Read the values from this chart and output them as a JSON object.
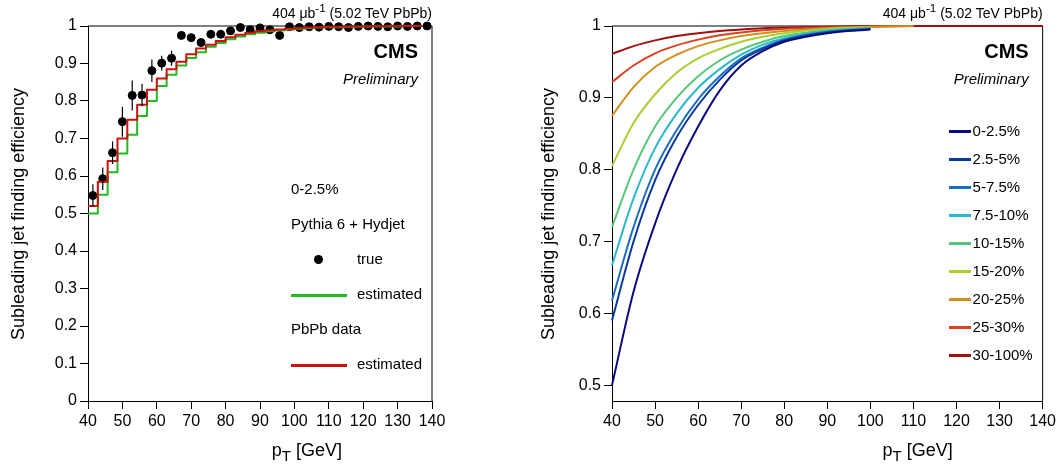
{
  "chart_data": [
    {
      "type": "scatter",
      "title": "404 μb$^{-1}$ (5.02 TeV PbPb)",
      "xlabel": "p$_{T}$ [GeV]",
      "ylabel": "Subleading jet finding efficiency",
      "annotations": [
        "CMS",
        "Preliminary",
        "0-2.5%",
        "Pythia 6 + Hydjet",
        "PbPb data"
      ],
      "xlim": [
        40,
        140
      ],
      "xticks": [
        40,
        50,
        60,
        70,
        80,
        90,
        100,
        110,
        120,
        130,
        140
      ],
      "ylim": [
        0,
        1
      ],
      "yticks": [
        0,
        0.1,
        0.2,
        0.3,
        0.4,
        0.5,
        0.6,
        0.7,
        0.8,
        0.9,
        1
      ],
      "legend": "right",
      "grid": false,
      "series": [
        {
          "name": "true",
          "marker": "circle",
          "color": "#000000",
          "x": [
            41.43,
            44.29,
            47.14,
            50,
            52.86,
            55.71,
            58.57,
            61.43,
            64.29,
            67.14,
            70,
            72.86,
            75.71,
            78.57,
            81.43,
            84.29,
            87.14,
            90,
            92.86,
            95.71,
            98.57,
            101.43,
            104.29,
            107.14,
            110,
            112.86,
            115.71,
            118.57,
            121.43,
            124.29,
            127.14,
            130,
            132.86,
            135.71,
            138.57
          ],
          "values": [
            0.548,
            0.593,
            0.662,
            0.745,
            0.815,
            0.816,
            0.881,
            0.901,
            0.914,
            0.975,
            0.969,
            0.956,
            0.978,
            0.978,
            0.987,
            0.996,
            0.99,
            0.995,
            0.99,
            0.975,
            0.998,
            0.996,
            0.998,
            0.997,
            0.999,
            0.998,
            0.996,
            0.999,
            1,
            0.999,
            0.998,
            1,
            0.999,
            1,
            1
          ],
          "errors": [
            0.03,
            0.03,
            0.03,
            0.04,
            0.04,
            0.03,
            0.03,
            0.02,
            0.02,
            0.01,
            0.01,
            0.01,
            0.01,
            0.01,
            null,
            null,
            null,
            null,
            null,
            null,
            null,
            null,
            null,
            null,
            null,
            null,
            null,
            null,
            null,
            null,
            null,
            null,
            null,
            null,
            null
          ]
        },
        {
          "name": "estimated",
          "type": "step",
          "color": "#22bb22",
          "x": [
            40,
            42.86,
            45.71,
            48.57,
            51.43,
            54.29,
            57.14,
            60,
            62.86,
            65.71,
            68.57,
            71.43,
            74.29,
            77.14,
            80,
            82.86,
            85.71,
            88.57,
            91.43,
            94.29,
            97.14,
            100,
            102.86,
            105.71,
            108.57,
            111.43,
            114.29,
            117.14,
            120,
            122.86,
            125.71,
            128.57,
            131.43,
            134.29,
            137.14
          ],
          "values": [
            0.5,
            0.55,
            0.61,
            0.66,
            0.71,
            0.76,
            0.8,
            0.84,
            0.87,
            0.895,
            0.915,
            0.93,
            0.945,
            0.955,
            0.965,
            0.972,
            0.978,
            0.982,
            0.986,
            0.989,
            0.991,
            0.993,
            0.995,
            0.996,
            0.997,
            0.997,
            0.998,
            0.998,
            0.999,
            0.999,
            0.999,
            0.999,
            1,
            1,
            1
          ]
        },
        {
          "name": "estimated",
          "type": "step",
          "color": "#cc1111",
          "x": [
            40,
            42.86,
            45.71,
            48.57,
            51.43,
            54.29,
            57.14,
            60,
            62.86,
            65.71,
            68.57,
            71.43,
            74.29,
            77.14,
            80,
            82.86,
            85.71,
            88.57,
            91.43,
            94.29,
            97.14,
            100,
            102.86,
            105.71,
            108.57,
            111.43,
            114.29,
            117.14,
            120,
            122.86,
            125.71,
            128.57,
            131.43,
            134.29,
            137.14
          ],
          "values": [
            0.52,
            0.585,
            0.64,
            0.7,
            0.75,
            0.79,
            0.83,
            0.86,
            0.885,
            0.905,
            0.925,
            0.94,
            0.95,
            0.96,
            0.97,
            0.977,
            0.982,
            0.986,
            0.989,
            0.991,
            0.993,
            0.995,
            0.996,
            0.997,
            0.998,
            0.998,
            0.999,
            0.999,
            0.999,
            1,
            1,
            1,
            1,
            1,
            1
          ]
        }
      ]
    },
    {
      "type": "line",
      "title": "404 μb$^{-1}$ (5.02 TeV PbPb)",
      "xlabel": "p$_{T}$ [GeV]",
      "ylabel": "Subleading jet finding efficiency",
      "annotations": [
        "CMS",
        "Preliminary"
      ],
      "xlim": [
        40,
        140
      ],
      "xticks": [
        40,
        50,
        60,
        70,
        80,
        90,
        100,
        110,
        120,
        130,
        140
      ],
      "ylim": [
        0.478,
        1
      ],
      "yticks": [
        0.5,
        0.6,
        0.7,
        0.8,
        0.9,
        1
      ],
      "legend": "right",
      "grid": false,
      "marker": "none",
      "x": [
        40,
        45,
        50,
        55,
        60,
        65,
        70,
        75,
        80,
        90,
        100,
        110,
        120,
        140
      ],
      "series": [
        {
          "name": "0-2.5%",
          "color": "#0b0b80",
          "values": [
            0.5,
            0.63,
            0.725,
            0.8,
            0.86,
            0.91,
            0.945,
            0.965,
            0.978,
            0.99,
            0.995,
            null,
            null,
            null
          ]
        },
        {
          "name": "2.5-5%",
          "color": "#0b3a9a",
          "values": [
            0.59,
            0.7,
            0.785,
            0.845,
            0.89,
            0.925,
            0.952,
            0.968,
            0.98,
            0.991,
            0.996,
            null,
            null,
            null
          ]
        },
        {
          "name": "5-7.5%",
          "color": "#1a6fc0",
          "values": [
            0.618,
            0.72,
            0.8,
            0.855,
            0.898,
            0.93,
            0.955,
            0.97,
            0.981,
            0.992,
            0.996,
            null,
            null,
            null
          ]
        },
        {
          "name": "7.5-10%",
          "color": "#2ab8d0",
          "values": [
            0.667,
            0.76,
            0.83,
            0.878,
            0.914,
            0.94,
            0.96,
            0.974,
            0.983,
            0.993,
            0.997,
            null,
            null,
            null
          ]
        },
        {
          "name": "10-15%",
          "color": "#55c878",
          "values": [
            0.72,
            0.8,
            0.86,
            0.9,
            0.93,
            0.952,
            0.967,
            0.978,
            0.986,
            0.994,
            0.997,
            null,
            null,
            null
          ]
        },
        {
          "name": "15-20%",
          "color": "#a8d030",
          "values": [
            0.805,
            0.865,
            0.905,
            0.935,
            0.955,
            0.968,
            0.978,
            0.985,
            0.99,
            0.996,
            0.998,
            null,
            null,
            null
          ]
        },
        {
          "name": "20-25%",
          "color": "#d09020",
          "values": [
            0.875,
            0.915,
            0.943,
            0.96,
            0.972,
            0.98,
            0.986,
            0.99,
            0.993,
            0.997,
            0.999,
            1,
            null,
            null
          ]
        },
        {
          "name": "25-30%",
          "color": "#d84020",
          "values": [
            0.922,
            0.945,
            0.962,
            0.973,
            0.981,
            0.987,
            0.991,
            0.994,
            0.996,
            0.998,
            0.999,
            1,
            null,
            null
          ]
        },
        {
          "name": "30-100%",
          "color": "#a01010",
          "values": [
            0.961,
            0.972,
            0.98,
            0.986,
            0.99,
            0.993,
            0.995,
            0.997,
            0.998,
            0.999,
            1,
            1,
            1,
            1
          ]
        }
      ]
    }
  ]
}
